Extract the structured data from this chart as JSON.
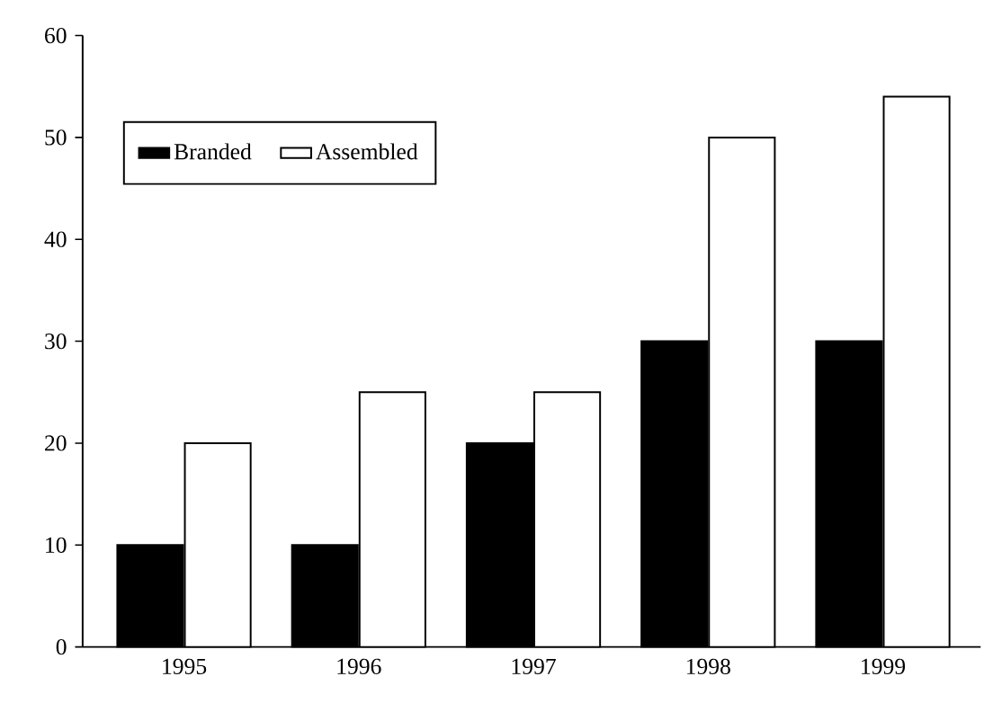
{
  "chart_data": {
    "type": "bar",
    "categories": [
      "1995",
      "1996",
      "1997",
      "1998",
      "1999"
    ],
    "series": [
      {
        "name": "Branded",
        "color": "#000000",
        "values": [
          10,
          10,
          20,
          30,
          30
        ]
      },
      {
        "name": "Assembled",
        "color": "#ffffff",
        "values": [
          20,
          25,
          25,
          50,
          54
        ]
      }
    ],
    "ylim": [
      0,
      60
    ],
    "yticks": [
      0,
      10,
      20,
      30,
      40,
      50,
      60
    ],
    "legend": "top left"
  }
}
